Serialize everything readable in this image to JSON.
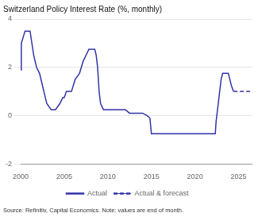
{
  "chart_data": {
    "type": "line",
    "title": "Switzerland Policy Interest Rate (%, monthly)",
    "annotations": [
      "Source: Refinitiv, Capital Economics. Note: values are end of month."
    ],
    "xlim": [
      2000,
      2026.5
    ],
    "xticks": [
      2000,
      2005,
      2010,
      2015,
      2020,
      2025
    ],
    "ylim": [
      -2,
      4
    ],
    "yticks": [
      -2,
      0,
      2,
      4
    ],
    "grid": "y",
    "legend": "bottom",
    "series": [
      {
        "name": "Actual",
        "color": "#3333aa",
        "line_style": "solid",
        "x": [
          2000.0,
          2000.08,
          2000.5,
          2001.0,
          2001.08,
          2001.5,
          2001.83,
          2002.17,
          2002.5,
          2002.83,
          2003.0,
          2003.5,
          2004.0,
          2004.5,
          2004.83,
          2005.0,
          2005.25,
          2005.83,
          2006.25,
          2006.75,
          2007.17,
          2007.5,
          2007.83,
          2008.0,
          2008.5,
          2008.67,
          2008.83,
          2009.0,
          2009.17,
          2009.5,
          2010.0,
          2011.0,
          2011.5,
          2012.0,
          2012.5,
          2013.0,
          2013.5,
          2014.0,
          2014.5,
          2014.83,
          2015.0,
          2015.17,
          2016.0,
          2017.0,
          2018.0,
          2019.0,
          2020.0,
          2021.0,
          2022.0,
          2022.33,
          2022.42,
          2022.67,
          2022.83,
          2023.0,
          2023.17,
          2023.5,
          2023.83,
          2024.0,
          2024.17,
          2024.42
        ],
        "values": [
          1.9,
          3.0,
          3.5,
          3.5,
          3.5,
          2.5,
          2.0,
          1.75,
          1.25,
          0.75,
          0.5,
          0.25,
          0.25,
          0.5,
          0.75,
          0.75,
          1.0,
          1.0,
          1.5,
          1.75,
          2.25,
          2.5,
          2.75,
          2.75,
          2.75,
          2.5,
          2.0,
          1.0,
          0.5,
          0.25,
          0.25,
          0.25,
          0.25,
          0.25,
          0.1,
          0.1,
          0.1,
          0.1,
          0.0,
          -0.1,
          -0.75,
          -0.75,
          -0.75,
          -0.75,
          -0.75,
          -0.75,
          -0.75,
          -0.75,
          -0.75,
          -0.75,
          -0.25,
          0.5,
          1.0,
          1.5,
          1.75,
          1.75,
          1.75,
          1.5,
          1.25,
          1.0
        ]
      },
      {
        "name": "Actual & forecast",
        "color": "#3333aa",
        "line_style": "dashed",
        "x": [
          2024.42,
          2024.75,
          2025.0,
          2025.5,
          2026.0,
          2026.33
        ],
        "values": [
          1.0,
          1.0,
          1.0,
          1.0,
          1.0,
          1.0
        ]
      }
    ]
  }
}
